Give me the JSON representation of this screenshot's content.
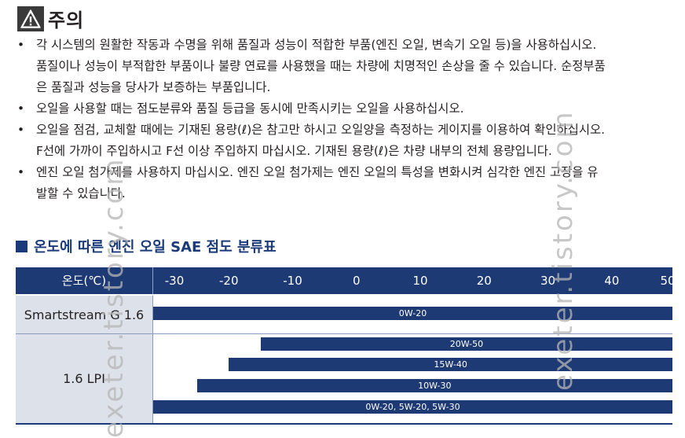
{
  "caution": {
    "icon": "warning-triangle-icon",
    "title": "주의"
  },
  "bullets": [
    [
      "각 시스템의 원활한 작동과 수명을 위해 품질과 성능이 적합한 부품(엔진 오일, 변속기 오일 등)을 사용하십시오.",
      "품질이나 성능이 부적합한 부품이나 불량 연료를 사용했을 때는 차량에 치명적인 손상을 줄 수 있습니다. 순정부품",
      "은 품질과 성능을 당사가 보증하는 부품입니다."
    ],
    [
      "오일을 사용할 때는 점도분류와 품질 등급을 동시에 만족시키는 오일을 사용하십시오."
    ],
    [
      "오일을 점검, 교체할 때에는 기재된 용량(ℓ)은 참고만 하시고 오일양을 측정하는 게이지를 이용하여 확인하십시오.",
      "F선에 가까이 주입하시고 F선 이상 주입하지 마십시오. 기재된 용량(ℓ)은 차량 내부의 전체 용량입니다."
    ],
    [
      "엔진 오일 첨가제를 사용하지 마십시오. 엔진 오일 첨가제는 엔진 오일의 특성을 변화시켜 심각한 엔진 고장을 유",
      "발할 수 있습니다."
    ]
  ],
  "bullet_marker": "•",
  "section_title": "온도에 따른 엔진 오일 SAE 점도 분류표",
  "table": {
    "header_label": "온도(℃)",
    "ticks": [
      "-30",
      "-20",
      "-10",
      "0",
      "10",
      "20",
      "30",
      "40",
      "50"
    ],
    "tick_values": [
      -30,
      -20,
      -10,
      0,
      10,
      20,
      30,
      40,
      50
    ],
    "rows": [
      {
        "label": "Smartstream G 1.6",
        "bars": [
          {
            "label": "0W-20",
            "from": -30,
            "to": 50
          }
        ]
      },
      {
        "label": "1.6 LPI",
        "bars": [
          {
            "label": "20W-50",
            "from": -15,
            "to": 50
          },
          {
            "label": "15W-40",
            "from": -20,
            "to": 50
          },
          {
            "label": "10W-30",
            "from": -25,
            "to": 50
          },
          {
            "label": "0W-20, 5W-20, 5W-30",
            "from": -30,
            "to": 50
          }
        ]
      }
    ]
  },
  "watermark": "exeter.tistory.com"
}
